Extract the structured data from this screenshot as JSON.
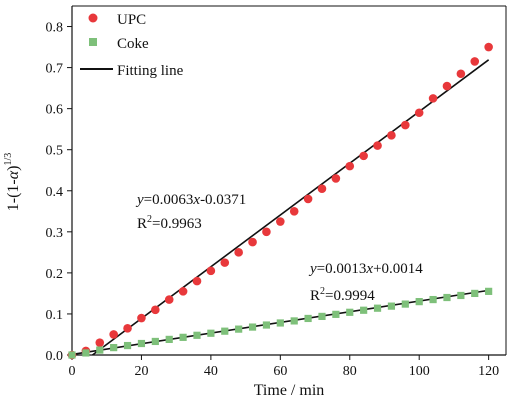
{
  "chart_data": {
    "type": "scatter",
    "xlabel": "Time / min",
    "ylabel": {
      "main": "1-(1-",
      "alpha": "α",
      "close": ")",
      "exp": "1/3"
    },
    "xlim": [
      0,
      125
    ],
    "ylim": [
      0,
      0.85
    ],
    "x_ticks": [
      "0",
      "20",
      "40",
      "60",
      "80",
      "100",
      "120"
    ],
    "y_ticks": [
      "0.0",
      "0.1",
      "0.2",
      "0.3",
      "0.4",
      "0.5",
      "0.6",
      "0.7",
      "0.8"
    ],
    "grid": false,
    "legend_position": "top-left",
    "series": [
      {
        "name": "UPC",
        "marker": "circle",
        "color": "#e8383b",
        "x": [
          0,
          4,
          8,
          12,
          16,
          20,
          24,
          28,
          32,
          36,
          40,
          44,
          48,
          52,
          56,
          60,
          64,
          68,
          72,
          76,
          80,
          84,
          88,
          92,
          96,
          100,
          104,
          108,
          112,
          116,
          120
        ],
        "y": [
          0.0,
          0.01,
          0.03,
          0.05,
          0.065,
          0.09,
          0.11,
          0.135,
          0.155,
          0.18,
          0.205,
          0.225,
          0.25,
          0.275,
          0.3,
          0.325,
          0.35,
          0.38,
          0.405,
          0.43,
          0.46,
          0.485,
          0.51,
          0.535,
          0.56,
          0.59,
          0.625,
          0.655,
          0.685,
          0.715,
          0.75
        ]
      },
      {
        "name": "Coke",
        "marker": "square",
        "color": "#7ec07a",
        "x": [
          0,
          4,
          8,
          12,
          16,
          20,
          24,
          28,
          32,
          36,
          40,
          44,
          48,
          52,
          56,
          60,
          64,
          68,
          72,
          76,
          80,
          84,
          88,
          92,
          96,
          100,
          104,
          108,
          112,
          116,
          120
        ],
        "y": [
          0.0,
          0.005,
          0.012,
          0.018,
          0.023,
          0.028,
          0.033,
          0.038,
          0.043,
          0.048,
          0.053,
          0.058,
          0.063,
          0.068,
          0.073,
          0.078,
          0.083,
          0.089,
          0.094,
          0.099,
          0.104,
          0.109,
          0.114,
          0.119,
          0.124,
          0.13,
          0.135,
          0.14,
          0.145,
          0.15,
          0.155
        ]
      }
    ],
    "fit_lines": [
      {
        "label": "Fitting line",
        "slope": 0.0063,
        "intercept": -0.0371,
        "x_start": 5.9,
        "x_end": 120,
        "color": "#111111"
      },
      {
        "slope": 0.0013,
        "intercept": 0.0014,
        "x_start": 0,
        "x_end": 120,
        "color": "#111111"
      }
    ],
    "annotations": [
      {
        "y_var": "y",
        "eq_rest": "=0.0063",
        "x_var": "x",
        "eq_const": "-0.0371",
        "r_main": "R",
        "r_sup": "2",
        "r_val": "=0.9963"
      },
      {
        "y_var": "y",
        "eq_rest": "=0.0013",
        "x_var": "x",
        "eq_const": "+0.0014",
        "r_main": "R",
        "r_sup": "2",
        "r_val": "=0.9994"
      }
    ]
  }
}
